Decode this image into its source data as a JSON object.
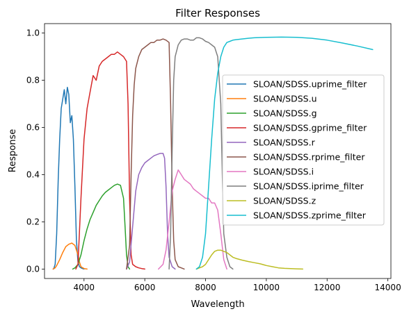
{
  "chart_data": {
    "type": "line",
    "title": "Filter Responses",
    "xlabel": "Wavelength",
    "ylabel": "Response",
    "xlim": [
      2700,
      14100
    ],
    "ylim": [
      -0.04,
      1.04
    ],
    "xticks": [
      4000,
      6000,
      8000,
      10000,
      12000,
      14000
    ],
    "yticks": [
      0.0,
      0.2,
      0.4,
      0.6,
      0.8,
      1.0
    ],
    "xtick_labels": [
      "4000",
      "6000",
      "8000",
      "10000",
      "12000",
      "14000"
    ],
    "ytick_labels": [
      "0.0",
      "0.2",
      "0.4",
      "0.6",
      "0.8",
      "1.0"
    ],
    "grid": false,
    "legend_position": "center-right",
    "series": [
      {
        "name": "SLOAN/SDSS.uprime_filter",
        "color": "#1f77b4",
        "x": [
          3000,
          3050,
          3100,
          3150,
          3200,
          3250,
          3300,
          3350,
          3400,
          3450,
          3500,
          3550,
          3600,
          3650,
          3700,
          3750,
          3800,
          3850,
          3900,
          3950,
          4000
        ],
        "y": [
          0.0,
          0.02,
          0.15,
          0.38,
          0.55,
          0.68,
          0.72,
          0.76,
          0.7,
          0.77,
          0.74,
          0.62,
          0.65,
          0.55,
          0.35,
          0.12,
          0.03,
          0.01,
          0.005,
          0.002,
          0.0
        ]
      },
      {
        "name": "SLOAN/SDSS.u",
        "color": "#ff7f0e",
        "x": [
          2980,
          3050,
          3100,
          3200,
          3300,
          3400,
          3500,
          3600,
          3700,
          3800,
          3850,
          3900,
          4000,
          4100
        ],
        "y": [
          0.0,
          0.005,
          0.015,
          0.04,
          0.07,
          0.095,
          0.105,
          0.11,
          0.1,
          0.06,
          0.03,
          0.01,
          0.002,
          0.0
        ]
      },
      {
        "name": "SLOAN/SDSS.g",
        "color": "#2ca02c",
        "x": [
          3630,
          3700,
          3800,
          3900,
          4000,
          4100,
          4200,
          4300,
          4400,
          4500,
          4600,
          4700,
          4800,
          4900,
          5000,
          5100,
          5200,
          5300,
          5350,
          5400,
          5450,
          5500
        ],
        "y": [
          0.0,
          0.005,
          0.02,
          0.06,
          0.12,
          0.17,
          0.21,
          0.24,
          0.27,
          0.29,
          0.31,
          0.325,
          0.335,
          0.345,
          0.355,
          0.36,
          0.355,
          0.3,
          0.18,
          0.06,
          0.01,
          0.0
        ]
      },
      {
        "name": "SLOAN/SDSS.gprime_filter",
        "color": "#d62728",
        "x": [
          3730,
          3800,
          3900,
          4000,
          4100,
          4200,
          4300,
          4400,
          4500,
          4600,
          4700,
          4800,
          4900,
          5000,
          5100,
          5200,
          5300,
          5400,
          5450,
          5500,
          5550,
          5600,
          5700,
          5800,
          5900,
          6000
        ],
        "y": [
          0.0,
          0.02,
          0.3,
          0.55,
          0.68,
          0.75,
          0.82,
          0.8,
          0.86,
          0.88,
          0.89,
          0.9,
          0.91,
          0.91,
          0.92,
          0.91,
          0.9,
          0.88,
          0.7,
          0.3,
          0.06,
          0.02,
          0.01,
          0.005,
          0.002,
          0.0
        ]
      },
      {
        "name": "SLOAN/SDSS.r",
        "color": "#9467bd",
        "x": [
          5400,
          5500,
          5600,
          5700,
          5800,
          5900,
          6000,
          6100,
          6200,
          6300,
          6400,
          6500,
          6600,
          6650,
          6700,
          6750,
          6800,
          6900,
          7000
        ],
        "y": [
          0.0,
          0.03,
          0.18,
          0.33,
          0.4,
          0.43,
          0.45,
          0.46,
          0.47,
          0.48,
          0.485,
          0.49,
          0.49,
          0.47,
          0.35,
          0.15,
          0.05,
          0.01,
          0.0
        ]
      },
      {
        "name": "SLOAN/SDSS.rprime_filter",
        "color": "#8c564b",
        "x": [
          5400,
          5500,
          5550,
          5600,
          5650,
          5700,
          5800,
          5900,
          6000,
          6100,
          6200,
          6300,
          6400,
          6500,
          6600,
          6700,
          6800,
          6850,
          6900,
          6950,
          7000,
          7100,
          7200,
          7300
        ],
        "y": [
          0.0,
          0.1,
          0.4,
          0.65,
          0.78,
          0.85,
          0.9,
          0.93,
          0.94,
          0.95,
          0.96,
          0.96,
          0.97,
          0.97,
          0.975,
          0.97,
          0.96,
          0.7,
          0.35,
          0.12,
          0.04,
          0.01,
          0.005,
          0.0
        ]
      },
      {
        "name": "SLOAN/SDSS.i",
        "color": "#e377c2",
        "x": [
          6450,
          6600,
          6700,
          6800,
          6900,
          7000,
          7100,
          7200,
          7300,
          7400,
          7500,
          7600,
          7700,
          7800,
          7900,
          8000,
          8100,
          8200,
          8300,
          8400,
          8500,
          8600,
          8700
        ],
        "y": [
          0.0,
          0.02,
          0.08,
          0.2,
          0.33,
          0.38,
          0.42,
          0.4,
          0.38,
          0.37,
          0.36,
          0.34,
          0.33,
          0.32,
          0.31,
          0.3,
          0.3,
          0.28,
          0.28,
          0.25,
          0.15,
          0.04,
          0.0
        ]
      },
      {
        "name": "SLOAN/SDSS.iprime_filter",
        "color": "#7f7f7f",
        "x": [
          6800,
          6850,
          6900,
          6950,
          7000,
          7100,
          7200,
          7300,
          7400,
          7500,
          7600,
          7700,
          7800,
          7900,
          8000,
          8100,
          8200,
          8300,
          8400,
          8500,
          8550,
          8600,
          8700,
          8800,
          8900
        ],
        "y": [
          0.0,
          0.15,
          0.5,
          0.8,
          0.9,
          0.95,
          0.97,
          0.975,
          0.975,
          0.97,
          0.97,
          0.98,
          0.98,
          0.975,
          0.965,
          0.96,
          0.95,
          0.94,
          0.9,
          0.7,
          0.4,
          0.15,
          0.05,
          0.01,
          0.0
        ]
      },
      {
        "name": "SLOAN/SDSS.z",
        "color": "#bcbd22",
        "x": [
          7700,
          7800,
          7900,
          8000,
          8100,
          8200,
          8300,
          8400,
          8500,
          8600,
          8700,
          8800,
          8900,
          9000,
          9200,
          9400,
          9600,
          9800,
          10000,
          10200,
          10400,
          10600,
          10800,
          11000,
          11200
        ],
        "y": [
          0.0,
          0.005,
          0.01,
          0.02,
          0.04,
          0.06,
          0.075,
          0.08,
          0.08,
          0.075,
          0.07,
          0.06,
          0.05,
          0.045,
          0.038,
          0.032,
          0.027,
          0.022,
          0.015,
          0.01,
          0.005,
          0.003,
          0.002,
          0.001,
          0.0
        ]
      },
      {
        "name": "SLOAN/SDSS.zprime_filter",
        "color": "#17becf",
        "x": [
          7700,
          7800,
          7900,
          8000,
          8100,
          8200,
          8300,
          8400,
          8500,
          8600,
          8700,
          8800,
          8900,
          9000,
          9200,
          9400,
          9600,
          10000,
          10500,
          11000,
          11500,
          12000,
          12500,
          13000,
          13500
        ],
        "y": [
          0.0,
          0.01,
          0.05,
          0.15,
          0.35,
          0.55,
          0.72,
          0.83,
          0.9,
          0.94,
          0.96,
          0.965,
          0.97,
          0.972,
          0.975,
          0.978,
          0.98,
          0.982,
          0.983,
          0.982,
          0.978,
          0.97,
          0.958,
          0.945,
          0.93
        ]
      }
    ]
  }
}
